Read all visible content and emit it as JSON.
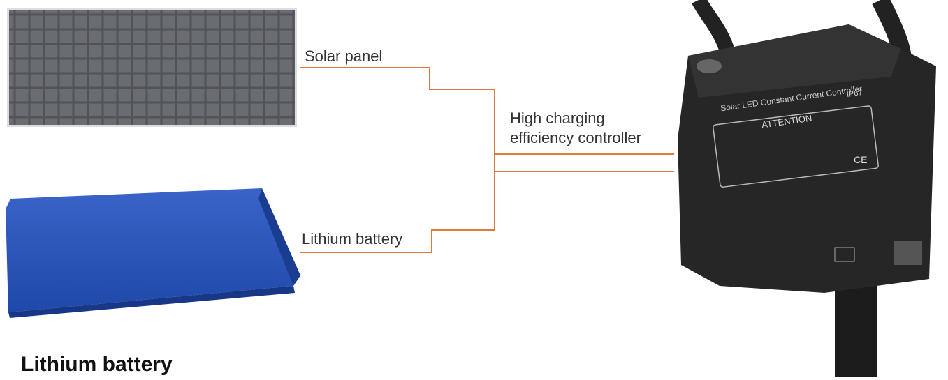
{
  "labels": {
    "solar_panel": "Solar panel",
    "controller_line1": "High charging",
    "controller_line2": "efficiency controller",
    "battery": "Lithium battery"
  },
  "device": {
    "name": "Solar LED Constant Current Controller",
    "rating": "IP67",
    "notice": "ATTENTION",
    "mark": "CE"
  },
  "caption": "Lithium battery"
}
